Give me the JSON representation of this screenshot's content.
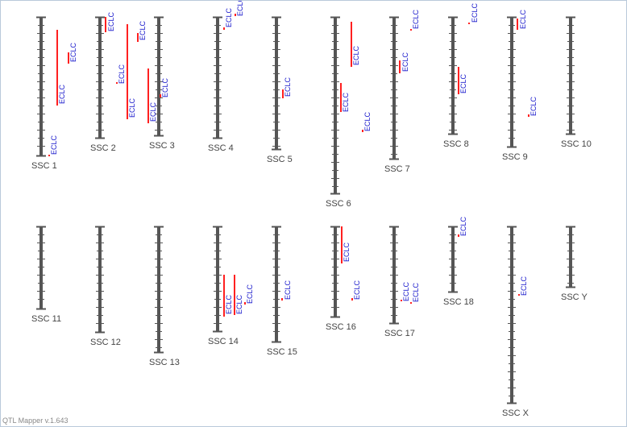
{
  "app": {
    "version_label": "QTL Mapper v.1.643"
  },
  "colors": {
    "chromosome": "#555555",
    "qtl_bar": "#ff2020",
    "qtl_label": "#1a1acc",
    "chr_label": "#444444"
  },
  "qtl_label_text": "ECLC",
  "chromosomes": [
    {
      "label": "SSC 1",
      "qtls": [
        {
          "label": "ECLC"
        },
        {
          "label": "ECLC"
        },
        {
          "label": "ECLC"
        }
      ]
    },
    {
      "label": "SSC 2",
      "qtls": [
        {
          "label": "ECLC"
        },
        {
          "label": "ECLC"
        },
        {
          "label": "ECLC"
        },
        {
          "label": "ECLC"
        }
      ]
    },
    {
      "label": "SSC 3",
      "qtls": [
        {
          "label": "ECLC"
        },
        {
          "label": "ECLC"
        }
      ]
    },
    {
      "label": "SSC 4",
      "qtls": [
        {
          "label": "ECLC"
        },
        {
          "label": "ECLC"
        }
      ]
    },
    {
      "label": "SSC 5",
      "qtls": [
        {
          "label": "ECLC"
        }
      ]
    },
    {
      "label": "SSC 6",
      "qtls": [
        {
          "label": "ECLC"
        },
        {
          "label": "ECLC"
        },
        {
          "label": "ECLC"
        }
      ]
    },
    {
      "label": "SSC 7",
      "qtls": [
        {
          "label": "ECLC"
        },
        {
          "label": "ECLC"
        }
      ]
    },
    {
      "label": "SSC 8",
      "qtls": [
        {
          "label": "ECLC"
        },
        {
          "label": "ECLC"
        }
      ]
    },
    {
      "label": "SSC 9",
      "qtls": [
        {
          "label": "ECLC"
        },
        {
          "label": "ECLC"
        }
      ]
    },
    {
      "label": "SSC 10",
      "qtls": []
    },
    {
      "label": "SSC 11",
      "qtls": []
    },
    {
      "label": "SSC 12",
      "qtls": []
    },
    {
      "label": "SSC 13",
      "qtls": []
    },
    {
      "label": "SSC 14",
      "qtls": [
        {
          "label": "ECLC"
        },
        {
          "label": "ECLC"
        },
        {
          "label": "ECLC"
        }
      ]
    },
    {
      "label": "SSC 15",
      "qtls": [
        {
          "label": "ECLC"
        }
      ]
    },
    {
      "label": "SSC 16",
      "qtls": [
        {
          "label": "ECLC"
        },
        {
          "label": "ECLC"
        }
      ]
    },
    {
      "label": "SSC 17",
      "qtls": [
        {
          "label": "ECLC"
        },
        {
          "label": "ECLC"
        }
      ]
    },
    {
      "label": "SSC 18",
      "qtls": [
        {
          "label": "ECLC"
        }
      ]
    },
    {
      "label": "SSC X",
      "qtls": [
        {
          "label": "ECLC"
        }
      ]
    },
    {
      "label": "SSC Y",
      "qtls": []
    }
  ]
}
